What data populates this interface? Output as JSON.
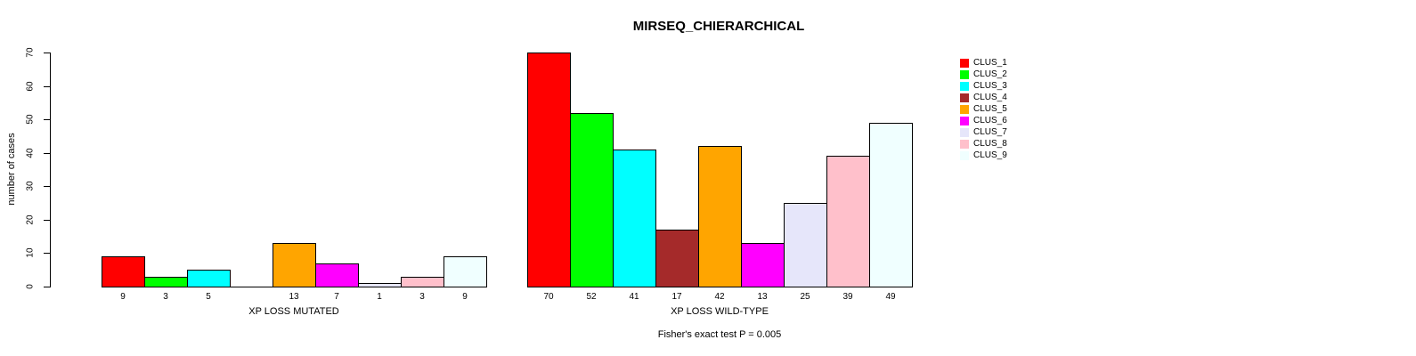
{
  "chart_data": {
    "type": "bar",
    "title": "MIRSEQ_CHIERARCHICAL",
    "ylabel": "number of cases",
    "ylim": [
      0,
      70
    ],
    "yticks": [
      0,
      10,
      20,
      30,
      40,
      50,
      60,
      70
    ],
    "grid": false,
    "legend_position": "right",
    "categories": [
      "CLUS_1",
      "CLUS_2",
      "CLUS_3",
      "CLUS_4",
      "CLUS_5",
      "CLUS_6",
      "CLUS_7",
      "CLUS_8",
      "CLUS_9"
    ],
    "colors": [
      "#FF0000",
      "#00FF00",
      "#00FFFF",
      "#A52A2A",
      "#FFA500",
      "#FF00FF",
      "#E6E6FA",
      "#FFC0CB",
      "#F0FFFF"
    ],
    "series": [
      {
        "name": "XP LOSS MUTATED",
        "values": [
          9,
          3,
          5,
          0,
          13,
          7,
          1,
          3,
          9
        ]
      },
      {
        "name": "XP LOSS WILD-TYPE",
        "values": [
          70,
          52,
          41,
          17,
          42,
          13,
          25,
          39,
          49
        ]
      }
    ],
    "bar_labels_shown_for_zero": false,
    "annotation": "Fisher's exact test P = 0.005"
  }
}
